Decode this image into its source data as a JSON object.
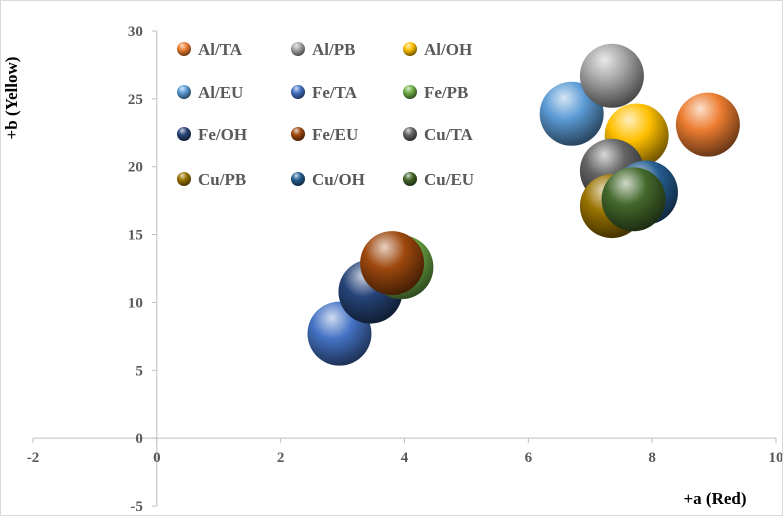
{
  "chart_data": {
    "type": "scatter",
    "title": "",
    "xlabel": "+a (Red)",
    "ylabel": "+b (Yellow)",
    "xlim": [
      -2,
      10
    ],
    "ylim": [
      -5,
      30
    ],
    "xticks": [
      "-2",
      "0",
      "2",
      "4",
      "6",
      "8",
      "10"
    ],
    "yticks": [
      "-5",
      "0",
      "5",
      "10",
      "15",
      "20",
      "25",
      "30"
    ],
    "grid": false,
    "legend_position": "top",
    "series": [
      {
        "name": "Al/TA",
        "color": "#ed7d31",
        "x": 8.9,
        "y": 23.1
      },
      {
        "name": "Al/PB",
        "color": "#a5a5a5",
        "x": 7.35,
        "y": 26.7
      },
      {
        "name": "Al/OH",
        "color": "#ffc000",
        "x": 7.75,
        "y": 22.3
      },
      {
        "name": "Al/EU",
        "color": "#5b9bd5",
        "x": 6.7,
        "y": 23.9
      },
      {
        "name": "Fe/TA",
        "color": "#4472c4",
        "x": 2.95,
        "y": 7.7
      },
      {
        "name": "Fe/PB",
        "color": "#70ad47",
        "x": 3.95,
        "y": 12.6
      },
      {
        "name": "Fe/OH",
        "color": "#264478",
        "x": 3.45,
        "y": 10.8
      },
      {
        "name": "Fe/EU",
        "color": "#9e480e",
        "x": 3.8,
        "y": 12.9
      },
      {
        "name": "Cu/TA",
        "color": "#636363",
        "x": 7.35,
        "y": 19.7
      },
      {
        "name": "Cu/PB",
        "color": "#997300",
        "x": 7.35,
        "y": 17.1
      },
      {
        "name": "Cu/OH",
        "color": "#255e91",
        "x": 7.9,
        "y": 18.1
      },
      {
        "name": "Cu/EU",
        "color": "#43682b",
        "x": 7.7,
        "y": 17.6
      }
    ]
  }
}
